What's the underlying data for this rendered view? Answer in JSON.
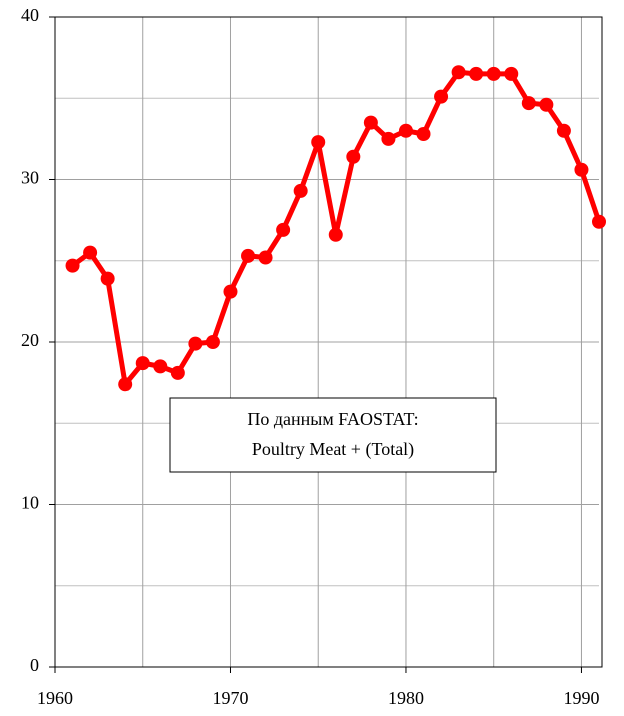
{
  "chart_data": {
    "type": "line",
    "x": [
      1961,
      1962,
      1963,
      1964,
      1965,
      1966,
      1967,
      1968,
      1969,
      1970,
      1971,
      1972,
      1973,
      1974,
      1975,
      1976,
      1977,
      1978,
      1979,
      1980,
      1981,
      1982,
      1983,
      1984,
      1985,
      1986,
      1987,
      1988,
      1989,
      1990,
      1991
    ],
    "series": [
      {
        "color": "#ff0000",
        "values": [
          24.7,
          25.5,
          23.9,
          17.4,
          18.7,
          18.5,
          18.1,
          19.9,
          20.0,
          23.1,
          25.3,
          25.2,
          26.9,
          29.3,
          32.3,
          26.6,
          31.4,
          33.5,
          32.5,
          33.0,
          32.8,
          35.1,
          36.6,
          36.5,
          36.5,
          36.5,
          34.7,
          34.6,
          33.0,
          30.6,
          27.4
        ]
      }
    ],
    "xlim": [
      1960,
      1991
    ],
    "xticks": [
      1960,
      1970,
      1980,
      1990
    ],
    "x_minor_ticks": [
      1965,
      1975,
      1985
    ],
    "ylim": [
      0,
      40
    ],
    "yticks": [
      0,
      10,
      20,
      30,
      40
    ],
    "y_minor_ticks": [
      5,
      15,
      25,
      35
    ],
    "grid": true,
    "annotation": [
      "По данным FAOSTAT:",
      "Poultry Meat + (Total)"
    ]
  }
}
